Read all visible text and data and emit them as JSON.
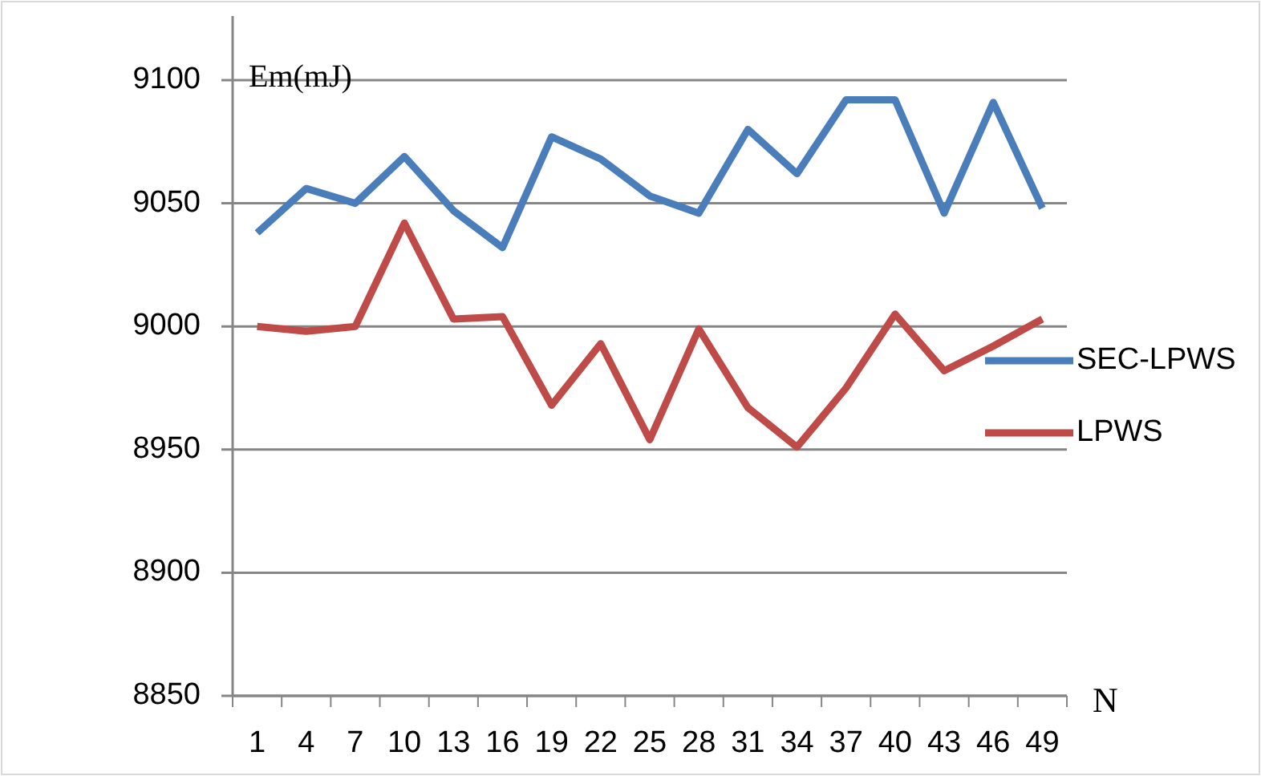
{
  "chart_data": {
    "type": "line",
    "ylabel": "Em(mJ)",
    "xlabel": "N",
    "categories": [
      "1",
      "4",
      "7",
      "10",
      "13",
      "16",
      "19",
      "22",
      "25",
      "28",
      "31",
      "34",
      "37",
      "40",
      "43",
      "46",
      "49"
    ],
    "series": [
      {
        "name": "SEC-LPWS",
        "color": "#4a7ebb",
        "values": [
          9038,
          9056,
          9050,
          9069,
          9047,
          9032,
          9077,
          9068,
          9053,
          9046,
          9080,
          9062,
          9092,
          9092,
          9046,
          9091,
          9048
        ]
      },
      {
        "name": "LPWS",
        "color": "#be4b48",
        "values": [
          9000,
          8998,
          9000,
          9042,
          9003,
          9004,
          8968,
          8993,
          8954,
          8999,
          8967,
          8951,
          8975,
          9005,
          8982,
          8992,
          9003
        ]
      }
    ],
    "ylim": [
      8850,
      9100
    ],
    "yticks": [
      8850,
      8900,
      8950,
      9000,
      9050,
      9100
    ],
    "grid": "y",
    "legend": "right",
    "marker": "none",
    "line_style": "solid"
  }
}
